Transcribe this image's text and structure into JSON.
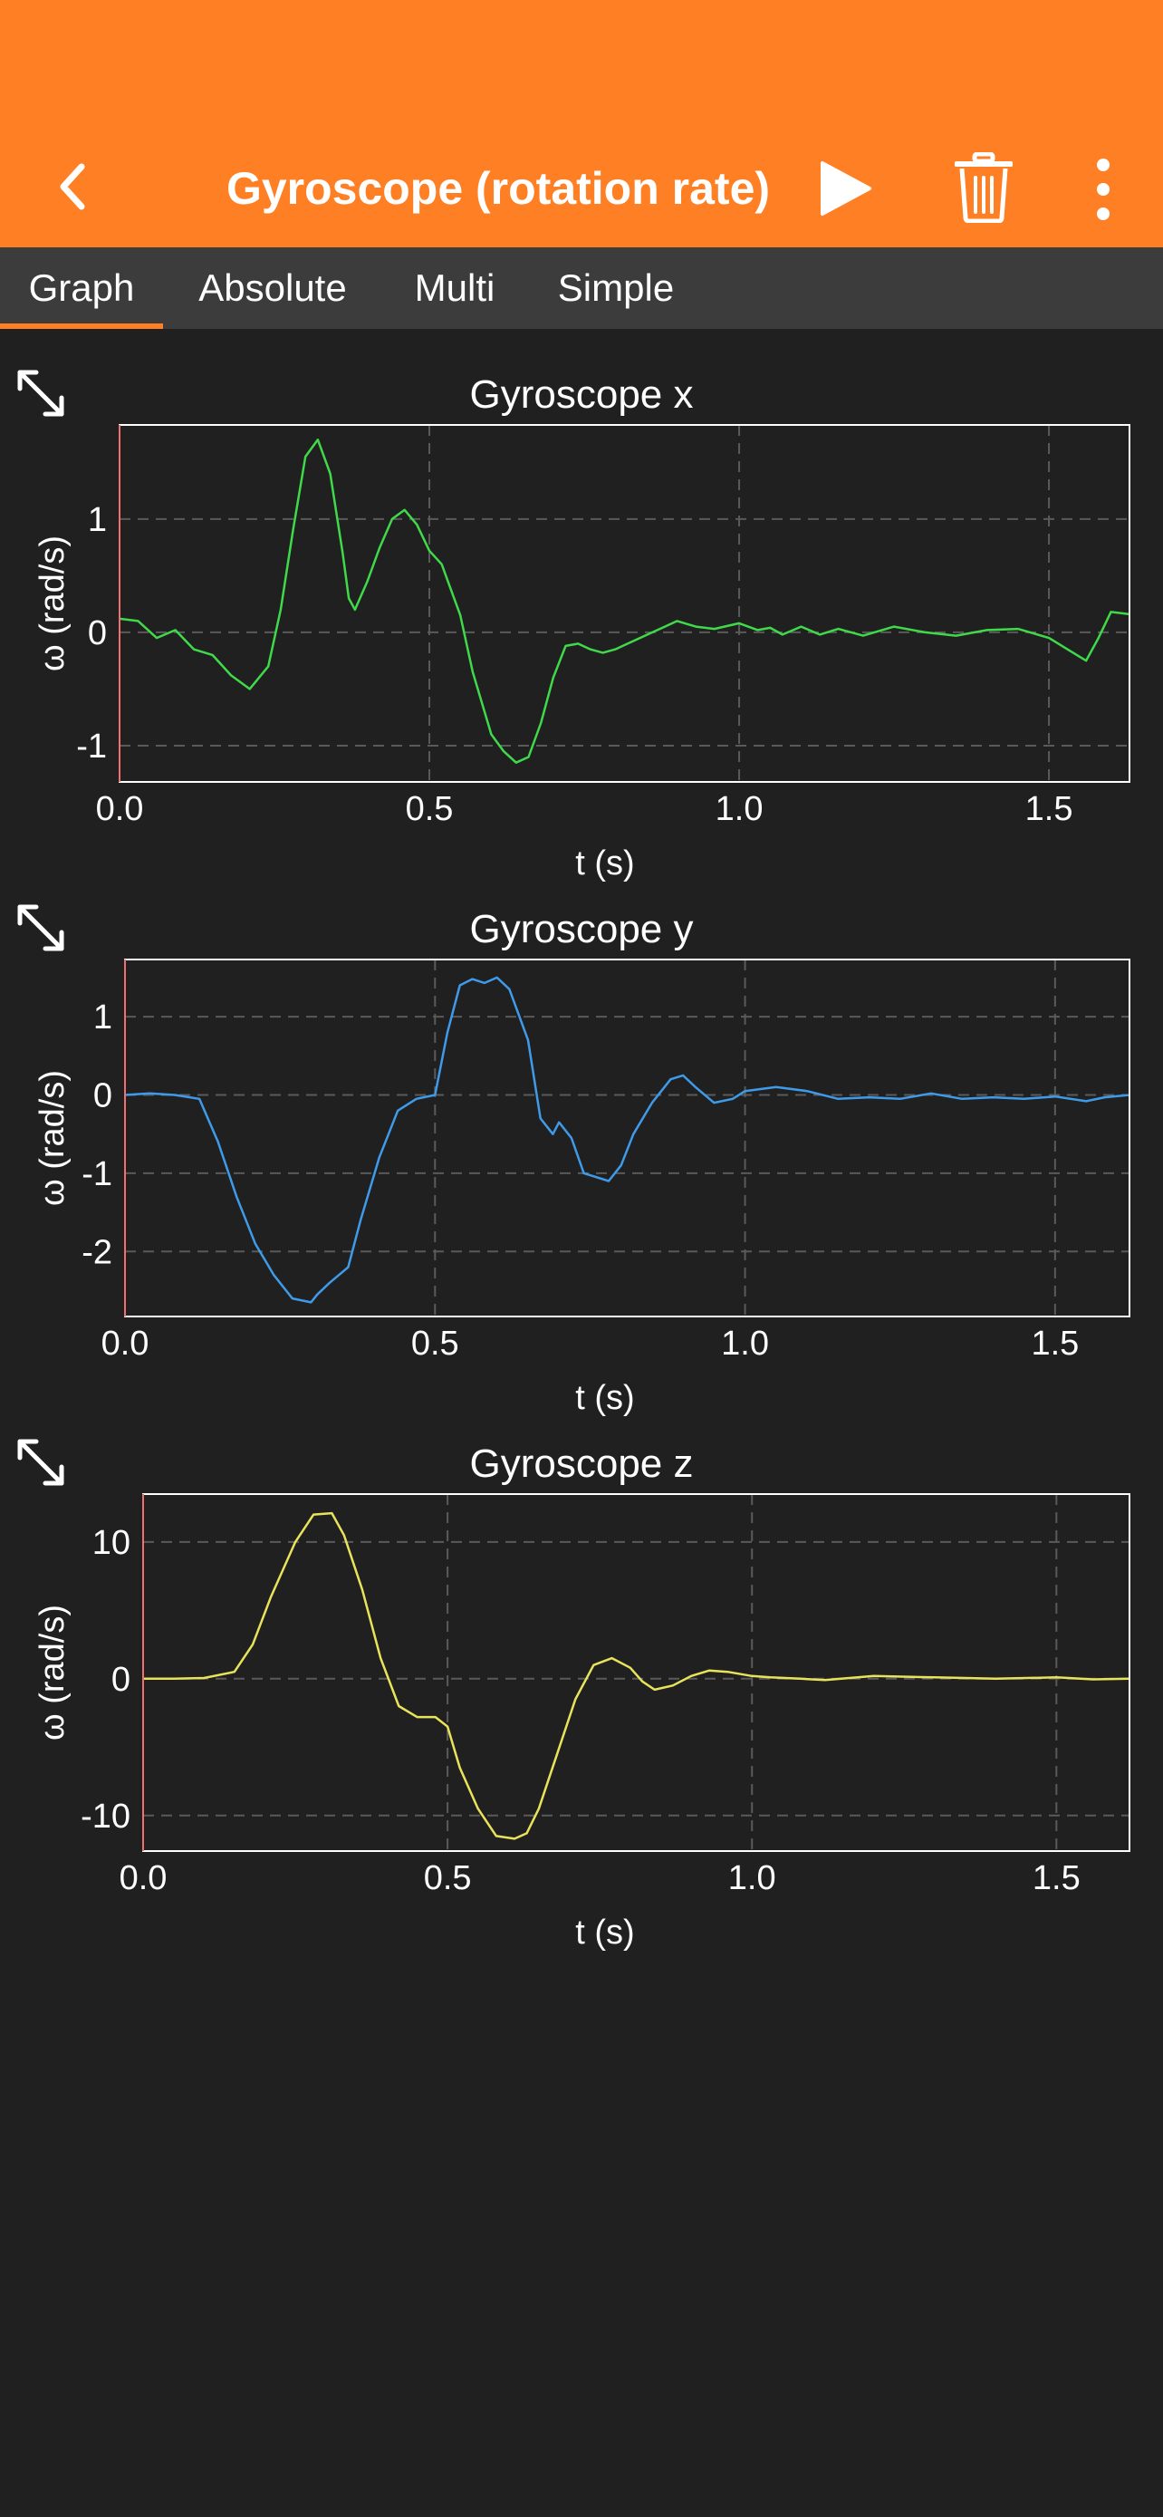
{
  "header": {
    "title": "Gyroscope (rotation rate)",
    "icons": [
      "back-chevron-icon",
      "play-icon",
      "trash-icon",
      "more-vertical-icon"
    ]
  },
  "tabs": [
    {
      "label": "Graph",
      "selected": true
    },
    {
      "label": "Absolute",
      "selected": false
    },
    {
      "label": "Multi",
      "selected": false
    },
    {
      "label": "Simple",
      "selected": false
    }
  ],
  "colors": {
    "accent": "#FF8024",
    "background": "#202020",
    "tabbar": "#3C3C3C",
    "series_x": "#3FD94A",
    "series_y": "#3F9BEA",
    "series_z": "#E8E35A"
  },
  "chart_data": [
    {
      "type": "line",
      "title": "Gyroscope x",
      "xlabel": "t (s)",
      "ylabel": "ω (rad/s)",
      "xlim": [
        0.0,
        1.63
      ],
      "ylim": [
        -1.32,
        1.83
      ],
      "xticks": [
        "0.0",
        "0.5",
        "1.0",
        "1.5"
      ],
      "yticks": [
        "-1",
        "0",
        "1"
      ],
      "grid": true,
      "series": [
        {
          "color": "#3FD94A",
          "x": [
            0.0,
            0.03,
            0.06,
            0.09,
            0.12,
            0.15,
            0.18,
            0.21,
            0.24,
            0.26,
            0.28,
            0.3,
            0.32,
            0.34,
            0.36,
            0.37,
            0.38,
            0.4,
            0.42,
            0.44,
            0.46,
            0.48,
            0.5,
            0.52,
            0.53,
            0.55,
            0.57,
            0.6,
            0.62,
            0.64,
            0.66,
            0.68,
            0.7,
            0.72,
            0.74,
            0.76,
            0.78,
            0.8,
            0.82,
            0.84,
            0.86,
            0.88,
            0.9,
            0.93,
            0.96,
            1.0,
            1.03,
            1.05,
            1.07,
            1.1,
            1.13,
            1.16,
            1.2,
            1.25,
            1.3,
            1.35,
            1.4,
            1.45,
            1.5,
            1.53,
            1.56,
            1.58,
            1.6,
            1.63
          ],
          "y": [
            0.12,
            0.1,
            -0.05,
            0.02,
            -0.15,
            -0.2,
            -0.38,
            -0.5,
            -0.3,
            0.2,
            0.9,
            1.55,
            1.7,
            1.4,
            0.7,
            0.3,
            0.2,
            0.45,
            0.75,
            1.0,
            1.08,
            0.95,
            0.72,
            0.6,
            0.45,
            0.15,
            -0.35,
            -0.9,
            -1.05,
            -1.15,
            -1.1,
            -0.8,
            -0.4,
            -0.12,
            -0.1,
            -0.15,
            -0.18,
            -0.15,
            -0.1,
            -0.05,
            0.0,
            0.05,
            0.1,
            0.05,
            0.03,
            0.08,
            0.02,
            0.04,
            -0.02,
            0.05,
            -0.02,
            0.03,
            -0.03,
            0.05,
            0.0,
            -0.03,
            0.02,
            0.03,
            -0.05,
            -0.15,
            -0.25,
            -0.05,
            0.18,
            0.16
          ]
        }
      ]
    },
    {
      "type": "line",
      "title": "Gyroscope y",
      "xlabel": "t (s)",
      "ylabel": "ω (rad/s)",
      "xlim": [
        0.0,
        1.62
      ],
      "ylim": [
        -2.83,
        1.73
      ],
      "xticks": [
        "0.0",
        "0.5",
        "1.0",
        "1.5"
      ],
      "yticks": [
        "-2",
        "-1",
        "0",
        "1"
      ],
      "grid": true,
      "series": [
        {
          "color": "#3F9BEA",
          "x": [
            0.0,
            0.04,
            0.08,
            0.12,
            0.15,
            0.18,
            0.21,
            0.24,
            0.27,
            0.3,
            0.31,
            0.33,
            0.36,
            0.38,
            0.41,
            0.44,
            0.47,
            0.5,
            0.52,
            0.54,
            0.56,
            0.58,
            0.6,
            0.62,
            0.65,
            0.67,
            0.69,
            0.7,
            0.72,
            0.74,
            0.76,
            0.78,
            0.8,
            0.82,
            0.85,
            0.88,
            0.9,
            0.92,
            0.95,
            0.98,
            1.0,
            1.05,
            1.1,
            1.15,
            1.2,
            1.25,
            1.3,
            1.35,
            1.4,
            1.45,
            1.5,
            1.55,
            1.58,
            1.62
          ],
          "y": [
            0.0,
            0.02,
            0.0,
            -0.05,
            -0.6,
            -1.3,
            -1.9,
            -2.3,
            -2.6,
            -2.65,
            -2.55,
            -2.4,
            -2.2,
            -1.6,
            -0.8,
            -0.2,
            -0.05,
            0.0,
            0.8,
            1.4,
            1.48,
            1.43,
            1.5,
            1.35,
            0.7,
            -0.3,
            -0.5,
            -0.35,
            -0.55,
            -1.0,
            -1.05,
            -1.1,
            -0.9,
            -0.5,
            -0.1,
            0.2,
            0.25,
            0.1,
            -0.1,
            -0.05,
            0.05,
            0.1,
            0.05,
            -0.05,
            -0.03,
            -0.05,
            0.02,
            -0.05,
            -0.03,
            -0.05,
            -0.02,
            -0.08,
            -0.03,
            0.0
          ]
        }
      ]
    },
    {
      "type": "line",
      "title": "Gyroscope z",
      "xlabel": "t (s)",
      "ylabel": "ω (rad/s)",
      "xlim": [
        0.0,
        1.62
      ],
      "ylim": [
        -12.6,
        13.5
      ],
      "xticks": [
        "0.0",
        "0.5",
        "1.0",
        "1.5"
      ],
      "yticks": [
        "-10",
        "0",
        "10"
      ],
      "grid": true,
      "series": [
        {
          "color": "#E8E35A",
          "x": [
            0.0,
            0.05,
            0.1,
            0.15,
            0.18,
            0.21,
            0.25,
            0.28,
            0.31,
            0.33,
            0.36,
            0.39,
            0.42,
            0.45,
            0.48,
            0.5,
            0.52,
            0.55,
            0.58,
            0.61,
            0.63,
            0.65,
            0.68,
            0.71,
            0.74,
            0.77,
            0.8,
            0.82,
            0.84,
            0.87,
            0.9,
            0.93,
            0.96,
            1.0,
            1.03,
            1.08,
            1.12,
            1.2,
            1.3,
            1.4,
            1.5,
            1.56,
            1.62
          ],
          "y": [
            0.0,
            0.0,
            0.05,
            0.5,
            2.5,
            6.0,
            10.0,
            12.0,
            12.1,
            10.5,
            6.5,
            1.5,
            -2.0,
            -2.8,
            -2.8,
            -3.5,
            -6.5,
            -9.5,
            -11.5,
            -11.7,
            -11.3,
            -9.5,
            -5.5,
            -1.5,
            1.0,
            1.5,
            0.8,
            -0.2,
            -0.8,
            -0.5,
            0.2,
            0.6,
            0.5,
            0.2,
            0.1,
            0.0,
            -0.1,
            0.2,
            0.1,
            0.0,
            0.1,
            -0.05,
            0.0
          ]
        }
      ]
    }
  ]
}
